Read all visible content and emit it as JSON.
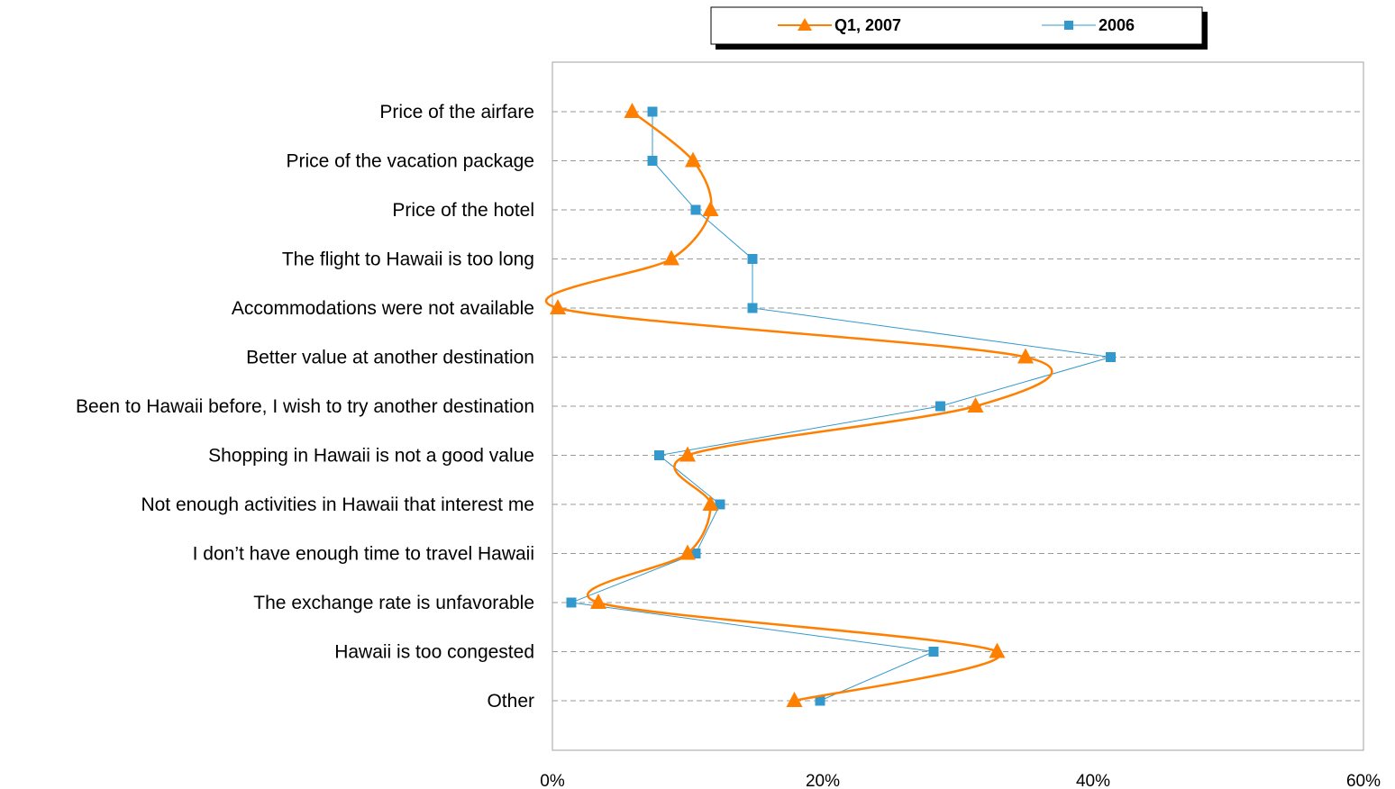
{
  "chart_data": {
    "type": "line",
    "orientation": "horizontal",
    "categories": [
      "Price of the airfare",
      "Price of the vacation package",
      "Price of the hotel",
      "The flight to Hawaii is too long",
      "Accommodations were not available",
      "Better value at another destination",
      "Been to Hawaii before, I wish to try another destination",
      "Shopping in Hawaii is not a good value",
      "Not enough activities in Hawaii that interest me",
      "I don’t have enough time to travel Hawaii",
      "The exchange rate is unfavorable",
      "Hawaii is too congested",
      "Other"
    ],
    "series": [
      {
        "name": "Q1, 2007",
        "color": "#ff7f00",
        "marker": "triangle",
        "smooth": true,
        "values": [
          5.9,
          10.4,
          11.7,
          8.8,
          0.4,
          35.0,
          31.3,
          10.0,
          11.7,
          10.0,
          3.4,
          32.9,
          17.9
        ]
      },
      {
        "name": "2006",
        "color": "#3399cc",
        "marker": "square",
        "smooth": false,
        "values": [
          7.4,
          7.4,
          10.6,
          14.8,
          14.8,
          41.3,
          28.7,
          7.9,
          12.4,
          10.6,
          1.4,
          28.2,
          19.8
        ]
      }
    ],
    "x_ticks": [
      "0%",
      "20%",
      "40%",
      "60%"
    ],
    "xlim": [
      0,
      60
    ],
    "grid": "horizontal-dashed",
    "legend_position": "top"
  }
}
